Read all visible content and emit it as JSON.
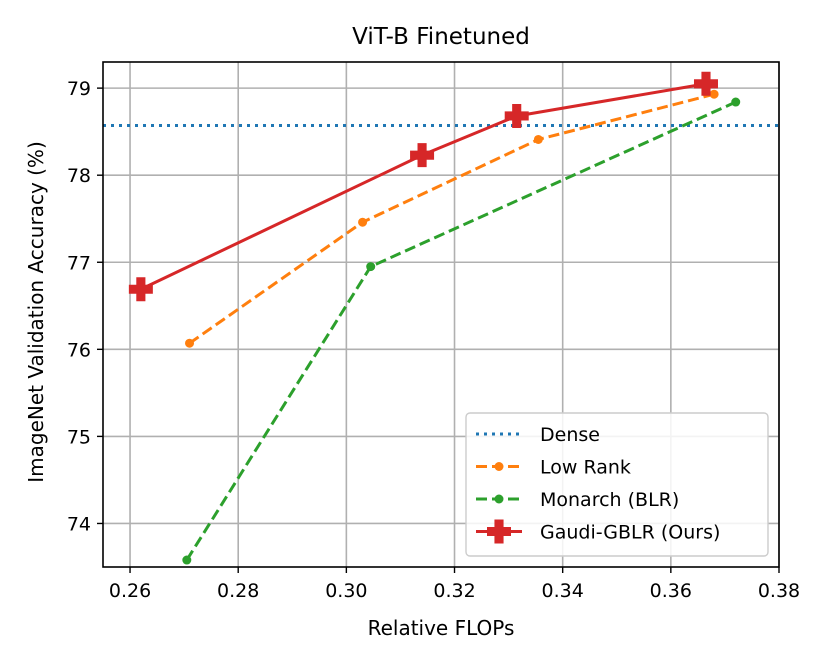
{
  "chart_data": {
    "type": "line",
    "title": "ViT-B Finetuned",
    "xlabel": "Relative FLOPs",
    "ylabel": "ImageNet Validation Accuracy (%)",
    "xlim": [
      0.255,
      0.38
    ],
    "ylim": [
      73.5,
      79.3
    ],
    "x_ticks": [
      0.26,
      0.28,
      0.3,
      0.32,
      0.34,
      0.36,
      0.38
    ],
    "x_tick_labels": [
      "0.26",
      "0.28",
      "0.30",
      "0.32",
      "0.34",
      "0.36",
      "0.38"
    ],
    "y_ticks": [
      74,
      75,
      76,
      77,
      78,
      79
    ],
    "y_tick_labels": [
      "74",
      "75",
      "76",
      "77",
      "78",
      "79"
    ],
    "grid": true,
    "legend_position": "lower-right",
    "series": [
      {
        "name": "Dense",
        "style": "dotted",
        "marker": "none",
        "color": "#1f77b4",
        "x": [
          0.255,
          0.38
        ],
        "values": [
          78.57,
          78.57
        ]
      },
      {
        "name": "Low Rank",
        "style": "dashed",
        "marker": "dot",
        "color": "#ff7f0e",
        "x": [
          0.271,
          0.303,
          0.3355,
          0.368
        ],
        "values": [
          76.07,
          77.46,
          78.41,
          78.93
        ]
      },
      {
        "name": "Monarch (BLR)",
        "style": "dashed",
        "marker": "dot",
        "color": "#2ca02c",
        "x": [
          0.2705,
          0.3045,
          0.372
        ],
        "values": [
          73.58,
          76.95,
          78.84
        ]
      },
      {
        "name": "Gaudi-GBLR (Ours)",
        "style": "solid",
        "marker": "plus",
        "color": "#d62728",
        "x": [
          0.262,
          0.314,
          0.3315,
          0.3665
        ],
        "values": [
          76.69,
          78.23,
          78.68,
          79.05
        ]
      }
    ]
  }
}
